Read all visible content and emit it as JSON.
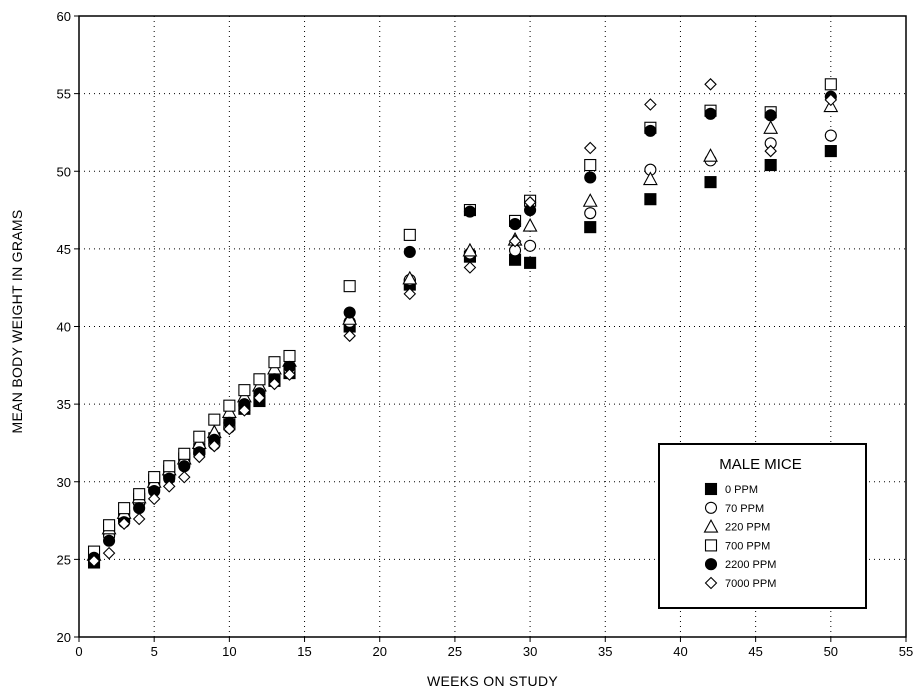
{
  "chart_data": {
    "type": "scatter",
    "title": "",
    "xlabel": "WEEKS ON STUDY",
    "ylabel": "MEAN BODY WEIGHT IN GRAMS",
    "xlim": [
      0,
      55
    ],
    "ylim": [
      20,
      60
    ],
    "xticks": [
      0,
      5,
      10,
      15,
      20,
      25,
      30,
      35,
      40,
      45,
      50,
      55
    ],
    "yticks": [
      20,
      25,
      30,
      35,
      40,
      45,
      50,
      55,
      60
    ],
    "grid": "dotted",
    "legend": {
      "title": "MALE MICE",
      "placement": "bottom-right"
    },
    "series": [
      {
        "name": "0 PPM",
        "marker": "square-filled",
        "x": [
          1,
          2,
          3,
          4,
          5,
          6,
          7,
          8,
          9,
          10,
          11,
          12,
          13,
          14,
          18,
          22,
          26,
          29,
          30,
          34,
          38,
          42,
          46,
          50
        ],
        "y": [
          24.8,
          26.9,
          27.8,
          28.9,
          30.1,
          30.7,
          31.5,
          32.1,
          32.8,
          33.7,
          34.7,
          35.2,
          36.5,
          37.0,
          40.0,
          42.7,
          44.5,
          44.3,
          44.1,
          46.4,
          48.2,
          49.3,
          50.4,
          51.3
        ]
      },
      {
        "name": "70 PPM",
        "marker": "circle-open",
        "x": [
          1,
          2,
          3,
          4,
          5,
          6,
          7,
          8,
          9,
          10,
          11,
          12,
          13,
          14,
          18,
          22,
          26,
          29,
          30,
          34,
          38,
          42,
          46,
          50
        ],
        "y": [
          25.0,
          26.5,
          27.5,
          28.6,
          29.5,
          30.3,
          31.1,
          31.8,
          32.4,
          33.5,
          34.9,
          35.8,
          36.7,
          37.2,
          40.3,
          43.0,
          44.7,
          44.9,
          45.2,
          47.3,
          50.1,
          50.7,
          51.8,
          52.3
        ]
      },
      {
        "name": "220 PPM",
        "marker": "triangle-open",
        "x": [
          1,
          2,
          3,
          4,
          5,
          6,
          7,
          8,
          9,
          10,
          11,
          12,
          13,
          14,
          18,
          22,
          26,
          29,
          30,
          34,
          38,
          42,
          46,
          50
        ],
        "y": [
          25.3,
          27.0,
          28.0,
          29.0,
          30.0,
          30.8,
          31.5,
          32.5,
          33.2,
          34.5,
          35.5,
          36.2,
          37.3,
          37.8,
          40.5,
          43.1,
          44.9,
          45.6,
          46.5,
          48.1,
          49.5,
          51.0,
          52.8,
          54.2
        ]
      },
      {
        "name": "700 PPM",
        "marker": "square-open",
        "x": [
          1,
          2,
          3,
          4,
          5,
          6,
          7,
          8,
          9,
          10,
          11,
          12,
          13,
          14,
          18,
          22,
          26,
          29,
          30,
          34,
          38,
          42,
          46,
          50
        ],
        "y": [
          25.5,
          27.2,
          28.3,
          29.2,
          30.3,
          31.0,
          31.8,
          32.9,
          34.0,
          34.9,
          35.9,
          36.6,
          37.7,
          38.1,
          42.6,
          45.9,
          47.5,
          46.8,
          48.1,
          50.4,
          52.8,
          53.9,
          53.8,
          55.6
        ]
      },
      {
        "name": "2200 PPM",
        "marker": "circle-filled",
        "x": [
          1,
          2,
          3,
          4,
          5,
          6,
          7,
          8,
          9,
          10,
          11,
          12,
          13,
          14,
          18,
          22,
          26,
          29,
          30,
          34,
          38,
          42,
          46,
          50
        ],
        "y": [
          25.1,
          26.2,
          27.4,
          28.3,
          29.4,
          30.2,
          31.0,
          31.9,
          32.7,
          33.8,
          35.0,
          35.7,
          36.6,
          37.4,
          40.9,
          44.8,
          47.4,
          46.6,
          47.5,
          49.6,
          52.6,
          53.7,
          53.6,
          54.8
        ]
      },
      {
        "name": "7000 PPM",
        "marker": "diamond-open",
        "x": [
          1,
          2,
          3,
          4,
          5,
          6,
          7,
          8,
          9,
          10,
          11,
          12,
          13,
          14,
          18,
          22,
          26,
          29,
          30,
          34,
          38,
          42,
          46,
          50
        ],
        "y": [
          24.9,
          25.4,
          27.3,
          27.6,
          28.9,
          29.7,
          30.3,
          31.6,
          32.3,
          33.4,
          34.6,
          35.4,
          36.3,
          36.9,
          39.4,
          42.1,
          43.8,
          45.5,
          48.0,
          51.5,
          54.3,
          55.6,
          51.3,
          54.6
        ]
      }
    ]
  }
}
